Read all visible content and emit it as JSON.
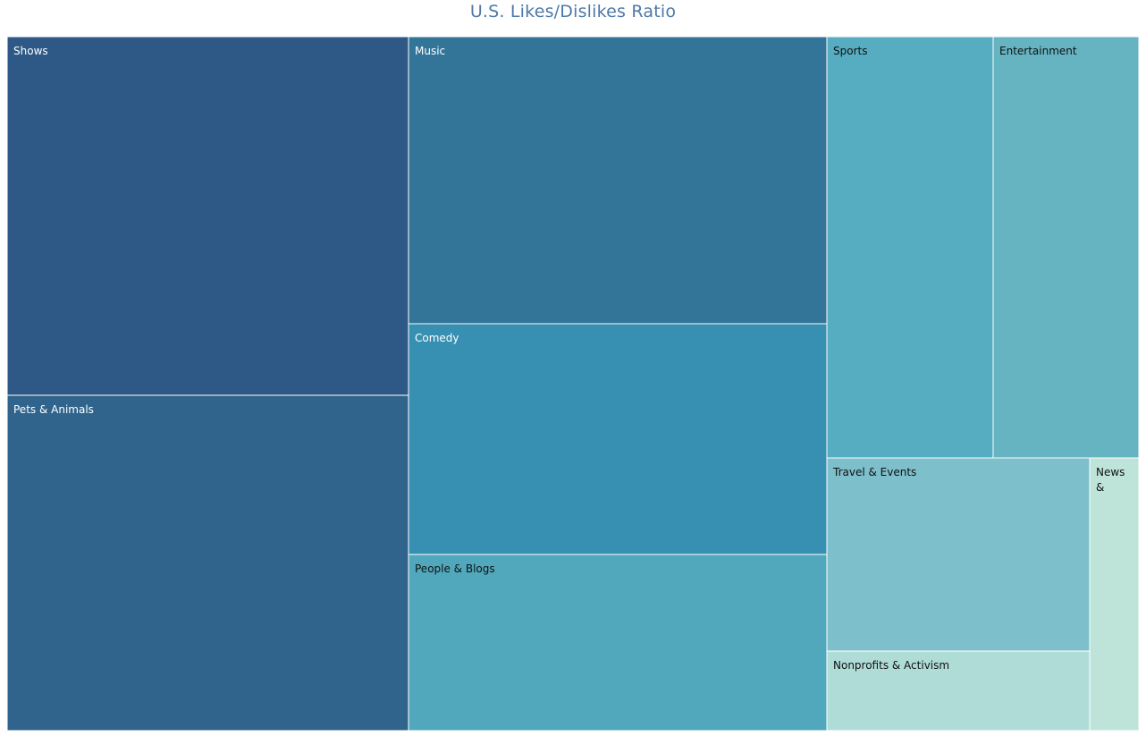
{
  "chart_data": {
    "type": "treemap",
    "title": "U.S. Likes/Dislikes Ratio",
    "tiles": [
      {
        "label": "Shows",
        "lines": [
          "Shows"
        ],
        "color": "#2e5986",
        "text_color": "#ffffff"
      },
      {
        "label": "Pets & Animals",
        "lines": [
          "Pets & Animals"
        ],
        "color": "#30648c",
        "text_color": "#ffffff"
      },
      {
        "label": "Music",
        "lines": [
          "Music"
        ],
        "color": "#337599",
        "text_color": "#ffffff"
      },
      {
        "label": "Comedy",
        "lines": [
          "Comedy"
        ],
        "color": "#3790b1",
        "text_color": "#ffffff"
      },
      {
        "label": "People & Blogs",
        "lines": [
          "People & Blogs"
        ],
        "color": "#51a8bc",
        "text_color": "#111111"
      },
      {
        "label": "Sports",
        "lines": [
          "Sports"
        ],
        "color": "#56acc0",
        "text_color": "#111111"
      },
      {
        "label": "Entertainment",
        "lines": [
          "Entertainment"
        ],
        "color": "#66b3c1",
        "text_color": "#111111"
      },
      {
        "label": "Travel & Events",
        "lines": [
          "Travel & Events"
        ],
        "color": "#7dbfca",
        "text_color": "#111111"
      },
      {
        "label": "Nonprofits & Activism",
        "lines": [
          "Nonprofits & Activism"
        ],
        "color": "#b0dcd7",
        "text_color": "#111111"
      },
      {
        "label": "News &",
        "lines": [
          "News",
          "&"
        ],
        "color": "#bee4d9",
        "text_color": "#111111"
      }
    ]
  }
}
